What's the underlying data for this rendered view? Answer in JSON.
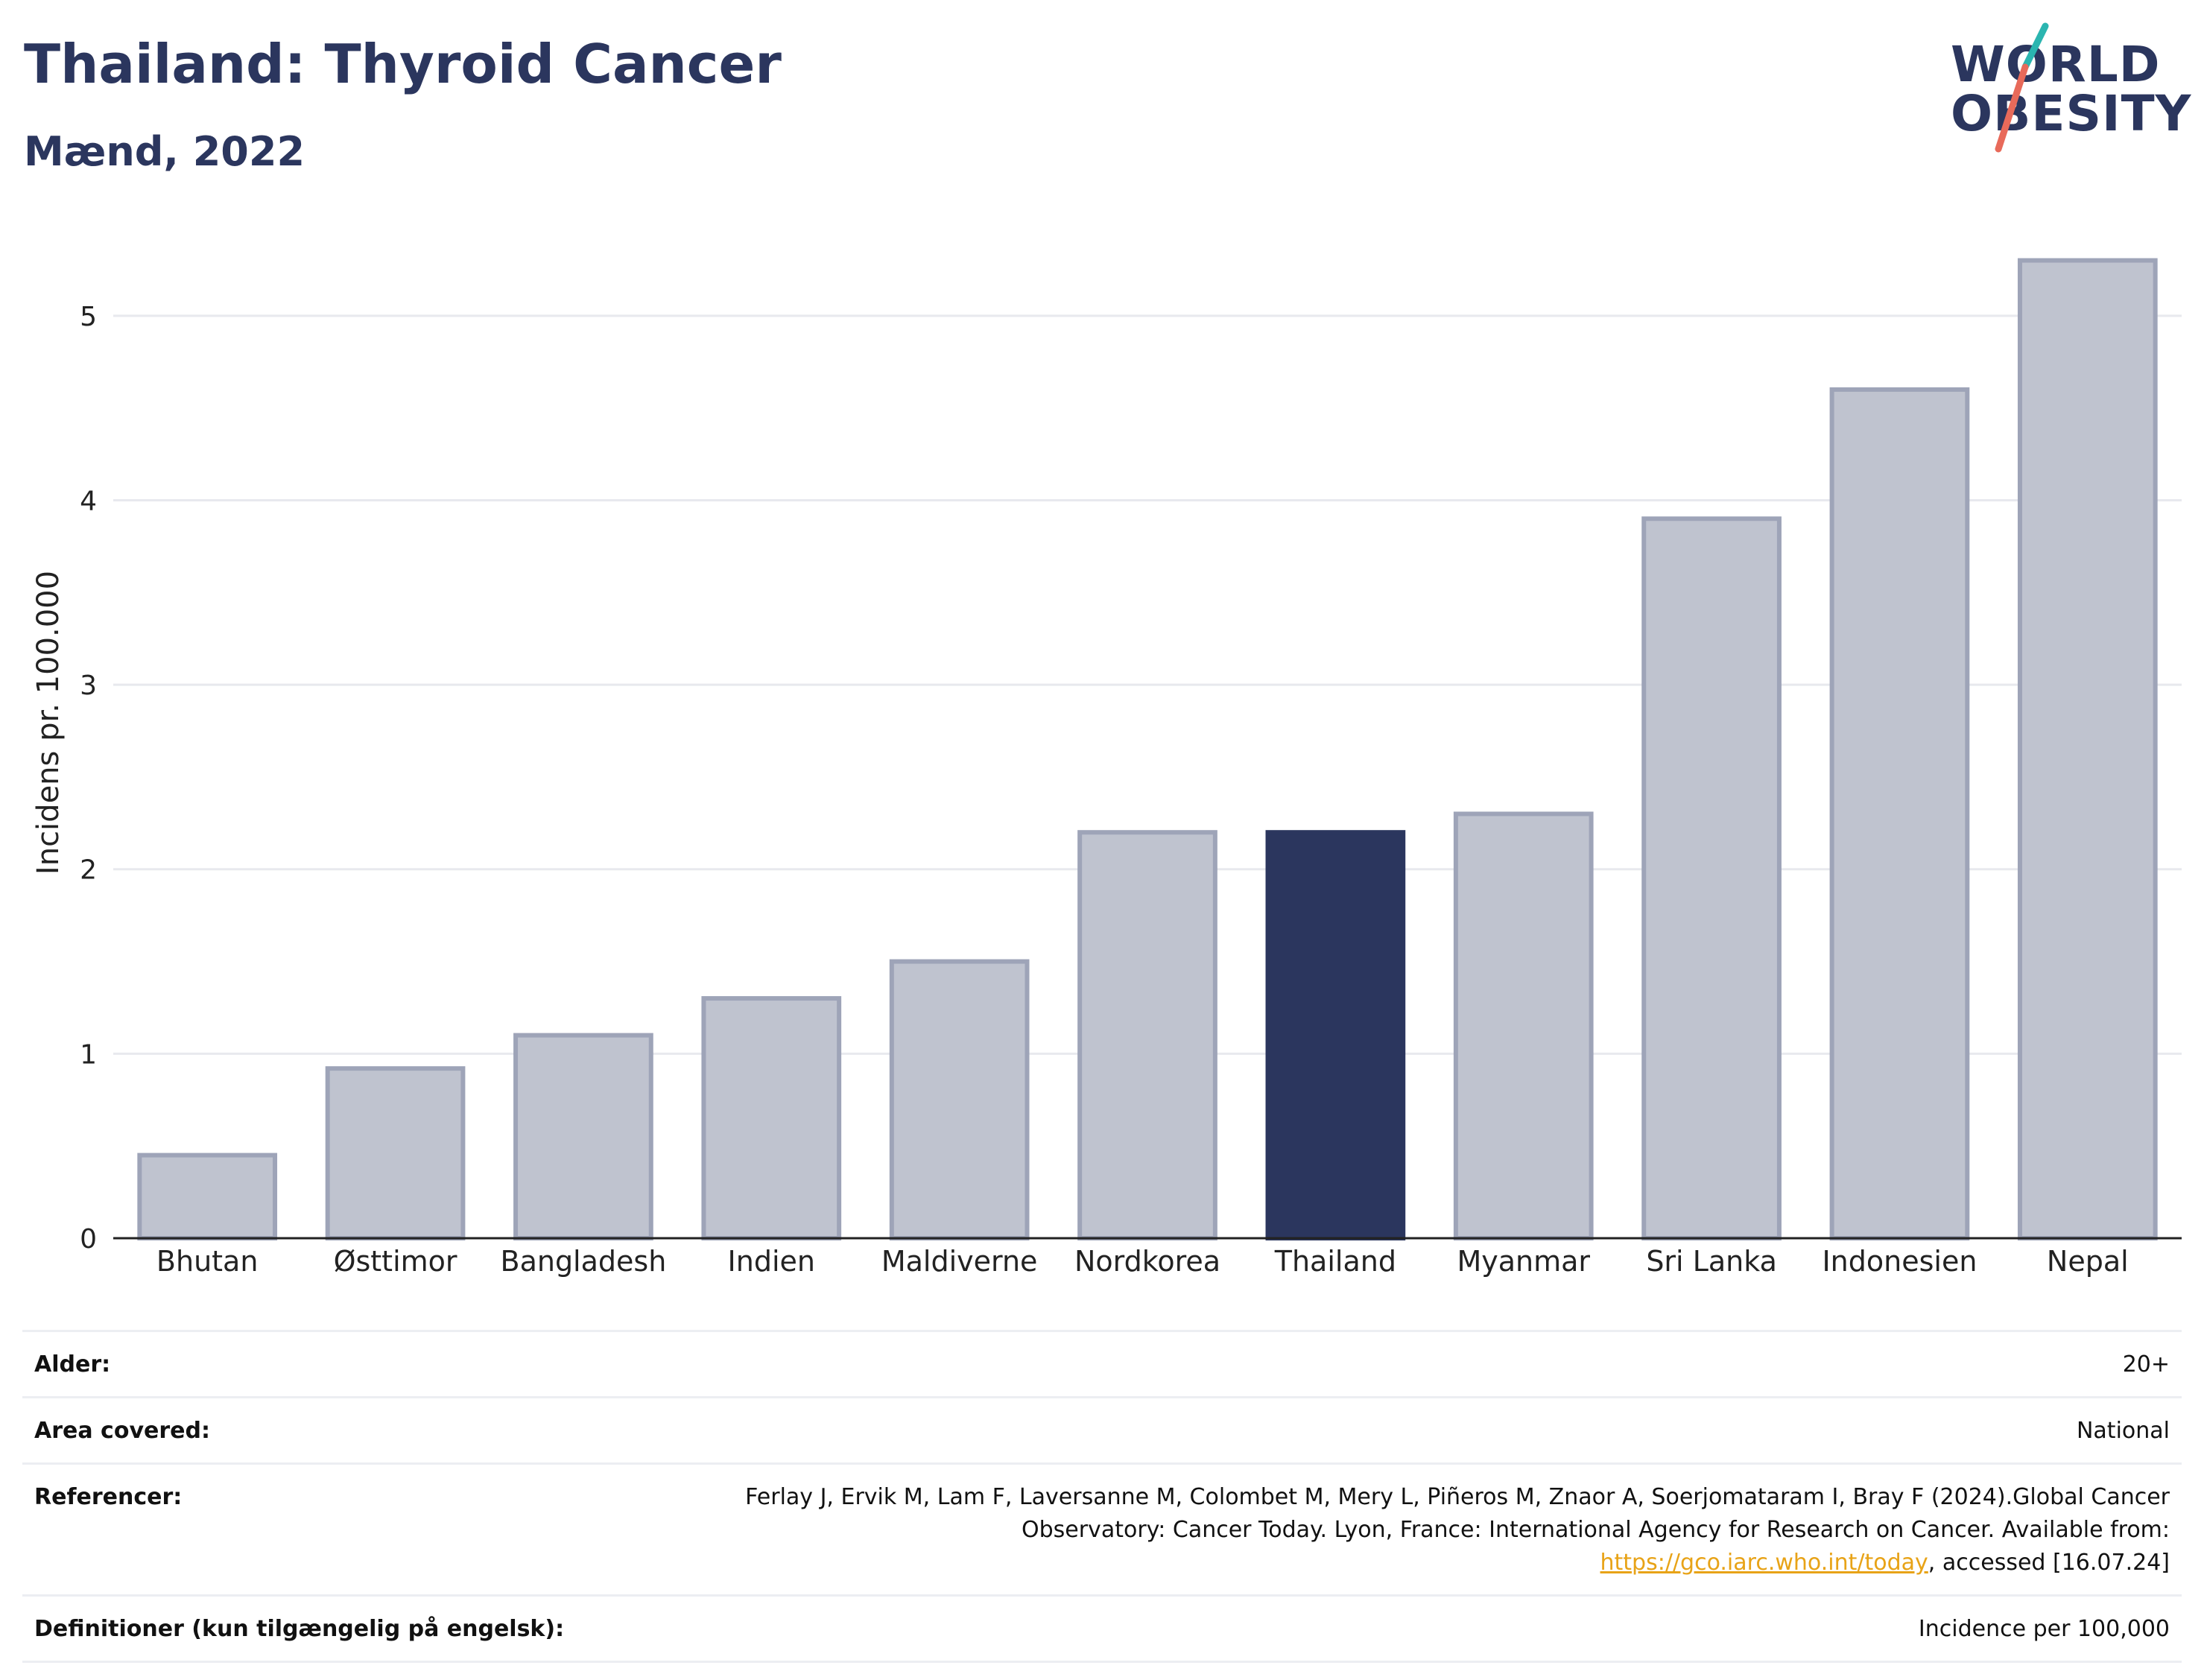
{
  "header": {
    "title": "Thailand: Thyroid Cancer",
    "subtitle": "Mænd, 2022"
  },
  "logo": {
    "line1": "WORLD",
    "line2": "OBESITY",
    "colors": {
      "text": "#2b365e",
      "accent_teal": "#2bb5b0",
      "accent_coral": "#e86a5a"
    }
  },
  "chart_data": {
    "type": "bar",
    "title": "Thailand: Thyroid Cancer",
    "subtitle": "Mænd, 2022",
    "xlabel": "",
    "ylabel": "Incidens pr. 100.000",
    "categories": [
      "Bhutan",
      "Østtimor",
      "Bangladesh",
      "Indien",
      "Maldiverne",
      "Nordkorea",
      "Thailand",
      "Myanmar",
      "Sri Lanka",
      "Indonesien",
      "Nepal"
    ],
    "values": [
      0.45,
      0.92,
      1.1,
      1.3,
      1.5,
      2.2,
      2.2,
      2.3,
      3.9,
      4.6,
      5.3
    ],
    "highlight": "Thailand",
    "ylim": [
      0,
      5.5
    ],
    "yticks": [
      0,
      1,
      2,
      3,
      4,
      5
    ],
    "grid": true,
    "legend": "none",
    "colors": {
      "bar": "#bfc3cf",
      "bar_border": "#9ea4b8",
      "highlight": "#2b365e",
      "grid": "#e8e9ee",
      "axis": "#222222"
    }
  },
  "meta": {
    "rows": [
      {
        "key": "Alder:",
        "value": "20+"
      },
      {
        "key": "Area covered:",
        "value": "National"
      },
      {
        "key": "Referencer:",
        "value_pre": "Ferlay J, Ervik M, Lam F, Laversanne M, Colombet M, Mery L, Piñeros M, Znaor A, Soerjomataram I, Bray F (2024).Global Cancer Observatory: Cancer Today. Lyon, France: International Agency for Research on Cancer. Available from: ",
        "link": "https://gco.iarc.who.int/today",
        "value_post": ", accessed [16.07.24]"
      },
      {
        "key": "Definitioner (kun tilgængelig på engelsk):",
        "value": "Incidence per 100,000"
      }
    ]
  }
}
